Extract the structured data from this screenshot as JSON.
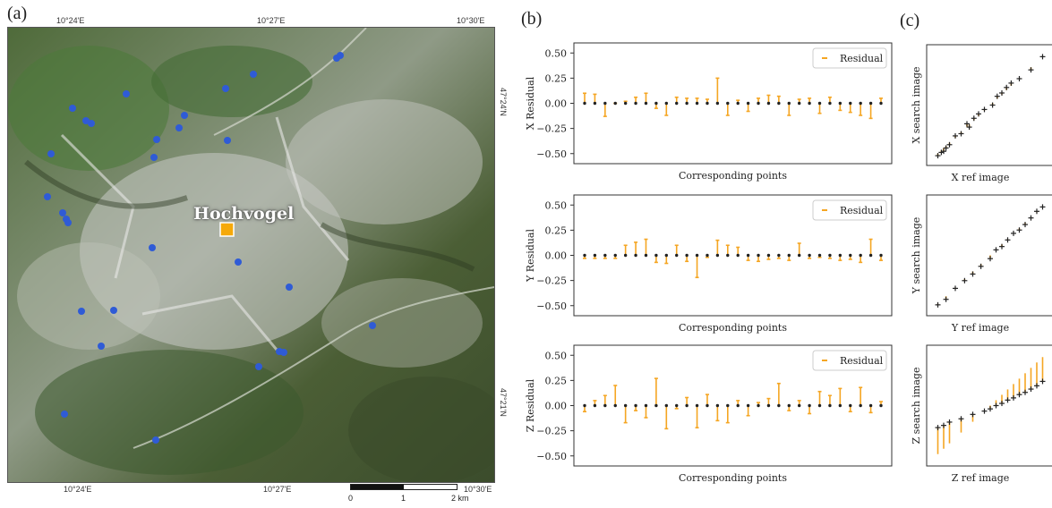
{
  "panels": {
    "a": "(a)",
    "b": "(b)",
    "c": "(c)"
  },
  "map": {
    "place_label": "Hochvogel",
    "top_lon_ticks": [
      "10°24'E",
      "10°27'E",
      "10°30'E"
    ],
    "bottom_lon_ticks": [
      "10°24'E",
      "10°27'E",
      "10°30'E"
    ],
    "lat_ticks": [
      "47°24'N",
      "47°21'N"
    ],
    "scale_labels": [
      "0",
      "1",
      "2 km"
    ],
    "colors": {
      "point": "#2f5bd6",
      "marker": "#f5a90a"
    }
  },
  "chart_data": [
    {
      "type": "scatter",
      "panel": "b-x",
      "xlabel": "Corresponding points",
      "ylabel": "X Residual",
      "ylim": [
        -0.6,
        0.6
      ],
      "yticks": [
        "0.50",
        "0.25",
        "0.00",
        "−0.25",
        "−0.50"
      ],
      "ytick_values": [
        0.5,
        0.25,
        0,
        -0.25,
        -0.5
      ],
      "series": [
        {
          "name": "Residual",
          "values": [
            0.1,
            0.09,
            -0.13,
            0.0,
            0.02,
            0.06,
            0.1,
            -0.05,
            -0.12,
            0.06,
            0.05,
            0.05,
            0.04,
            0.25,
            -0.12,
            0.03,
            -0.08,
            0.05,
            0.08,
            0.07,
            -0.12,
            0.04,
            0.05,
            -0.1,
            0.06,
            -0.07,
            -0.09,
            -0.12,
            -0.15,
            0.05
          ]
        }
      ],
      "legend": "top-right"
    },
    {
      "type": "scatter",
      "panel": "b-y",
      "xlabel": "Corresponding points",
      "ylabel": "Y Residual",
      "ylim": [
        -0.6,
        0.6
      ],
      "yticks": [
        "0.50",
        "0.25",
        "0.00",
        "−0.25",
        "−0.50"
      ],
      "ytick_values": [
        0.5,
        0.25,
        0,
        -0.25,
        -0.5
      ],
      "series": [
        {
          "name": "Residual",
          "values": [
            -0.03,
            -0.03,
            -0.03,
            -0.03,
            0.1,
            0.13,
            0.16,
            -0.07,
            -0.08,
            0.1,
            -0.06,
            -0.22,
            -0.02,
            0.15,
            0.1,
            0.08,
            -0.05,
            -0.06,
            -0.04,
            -0.03,
            -0.05,
            0.12,
            -0.03,
            -0.02,
            -0.03,
            -0.05,
            -0.04,
            -0.07,
            0.16,
            -0.05
          ]
        }
      ],
      "legend": "top-right"
    },
    {
      "type": "scatter",
      "panel": "b-z",
      "xlabel": "Corresponding points",
      "ylabel": "Z Residual",
      "ylim": [
        -0.6,
        0.6
      ],
      "yticks": [
        "0.50",
        "0.25",
        "0.00",
        "−0.25",
        "−0.50"
      ],
      "ytick_values": [
        0.5,
        0.25,
        0,
        -0.25,
        -0.5
      ],
      "series": [
        {
          "name": "Residual",
          "values": [
            -0.06,
            0.05,
            0.1,
            0.2,
            -0.17,
            -0.05,
            -0.12,
            0.27,
            -0.23,
            -0.03,
            0.08,
            -0.22,
            0.11,
            -0.15,
            -0.17,
            0.05,
            -0.1,
            0.03,
            0.07,
            0.22,
            -0.05,
            0.05,
            -0.08,
            0.14,
            0.1,
            0.17,
            -0.06,
            0.18,
            -0.07,
            0.04
          ]
        }
      ],
      "legend": "top-right"
    },
    {
      "type": "scatter",
      "panel": "c-x",
      "xlabel": "X ref image",
      "ylabel": "X search image",
      "x": [
        0.05,
        0.08,
        0.1,
        0.12,
        0.15,
        0.2,
        0.25,
        0.3,
        0.32,
        0.36,
        0.4,
        0.45,
        0.52,
        0.56,
        0.6,
        0.64,
        0.68,
        0.75,
        0.85,
        0.95
      ],
      "y": [
        0.04,
        0.07,
        0.08,
        0.11,
        0.14,
        0.22,
        0.24,
        0.33,
        0.3,
        0.38,
        0.42,
        0.46,
        0.5,
        0.58,
        0.61,
        0.66,
        0.7,
        0.74,
        0.82,
        0.94
      ]
    },
    {
      "type": "scatter",
      "panel": "c-y",
      "xlabel": "Y ref image",
      "ylabel": "Y search image",
      "x": [
        0.05,
        0.12,
        0.2,
        0.28,
        0.35,
        0.42,
        0.5,
        0.55,
        0.6,
        0.65,
        0.7,
        0.75,
        0.8,
        0.85,
        0.9,
        0.95
      ],
      "y": [
        0.05,
        0.1,
        0.2,
        0.27,
        0.33,
        0.4,
        0.47,
        0.55,
        0.58,
        0.64,
        0.7,
        0.73,
        0.78,
        0.84,
        0.9,
        0.94
      ]
    },
    {
      "type": "scatter",
      "panel": "c-z",
      "xlabel": "Z ref image",
      "ylabel": "Z search image",
      "x": [
        0.05,
        0.1,
        0.15,
        0.25,
        0.35,
        0.45,
        0.5,
        0.55,
        0.6,
        0.65,
        0.7,
        0.75,
        0.8,
        0.85,
        0.9,
        0.95
      ],
      "y": [
        0.3,
        0.32,
        0.35,
        0.38,
        0.42,
        0.45,
        0.47,
        0.5,
        0.52,
        0.55,
        0.57,
        0.6,
        0.62,
        0.65,
        0.68,
        0.72
      ]
    }
  ]
}
